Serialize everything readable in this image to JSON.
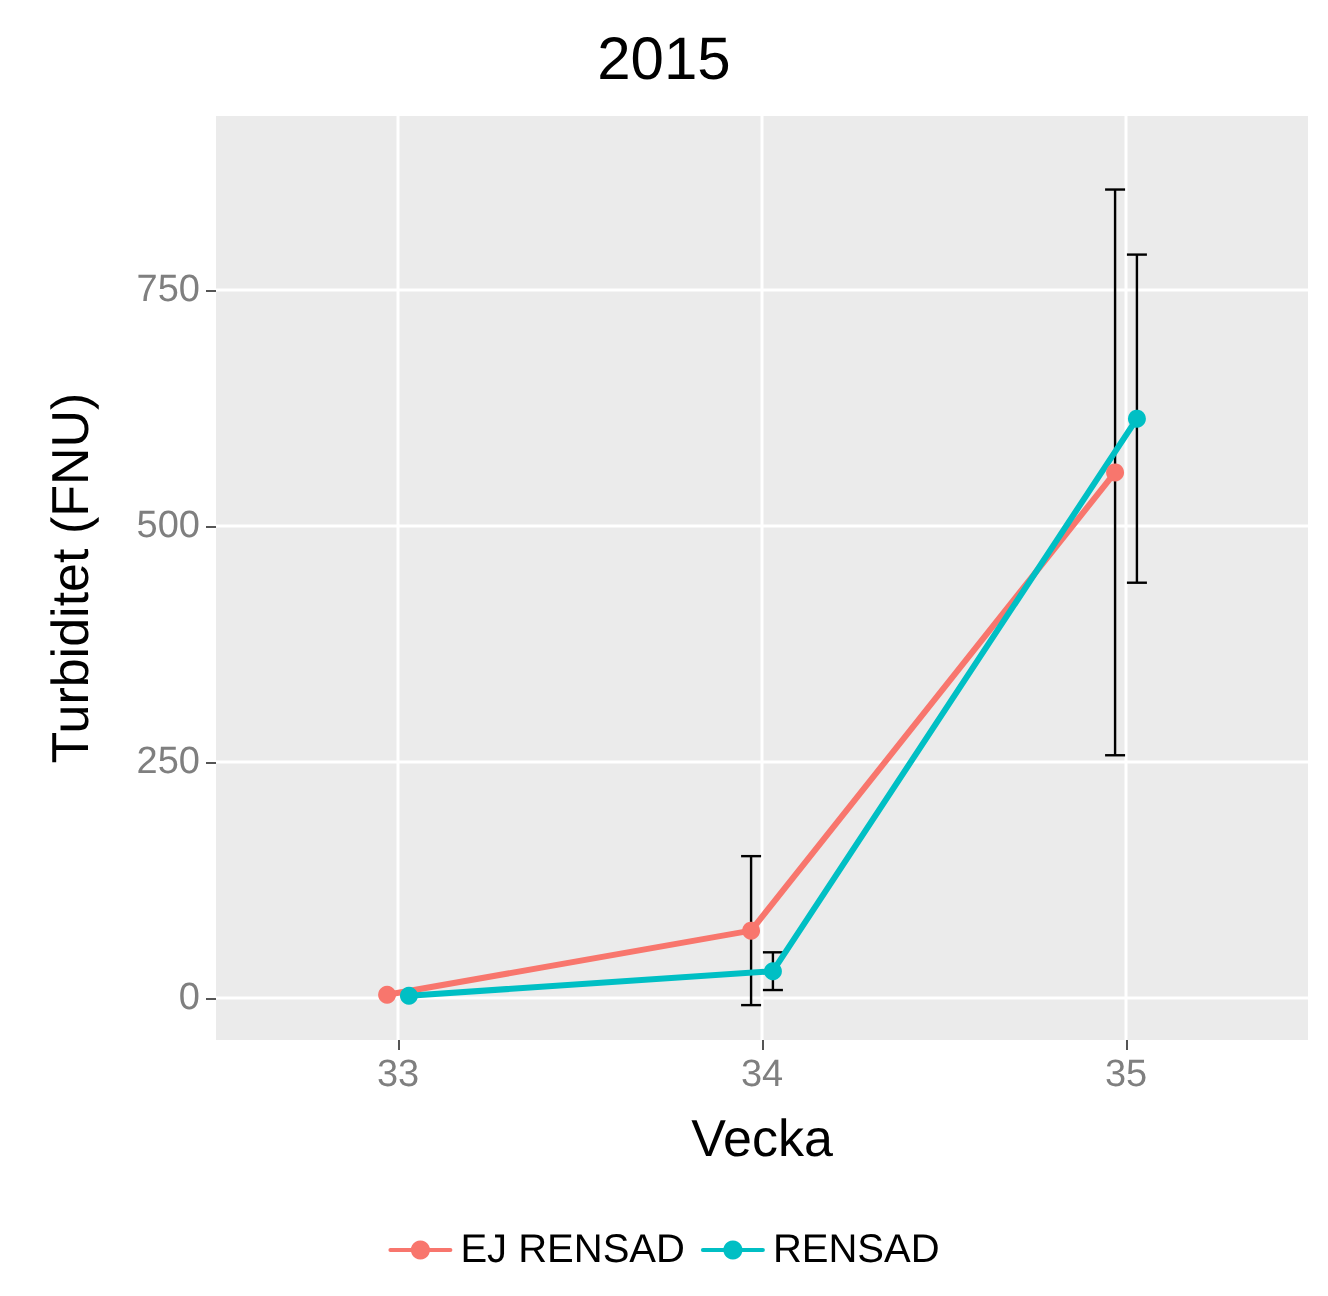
{
  "chart_data": {
    "type": "line",
    "title": "2015",
    "xlabel": "Vecka",
    "ylabel": "Turbiditet (FNU)",
    "series": [
      {
        "name": "EJ RENSAD",
        "color": "#f8766d",
        "x": [
          32.97,
          33.97,
          34.97
        ],
        "values": [
          3,
          71,
          557
        ],
        "errors": [
          null,
          79,
          300
        ]
      },
      {
        "name": "RENSAD",
        "color": "#00bfc4",
        "x": [
          33.03,
          34.03,
          35.03
        ],
        "values": [
          2,
          28,
          614
        ],
        "errors": [
          null,
          20,
          174
        ]
      }
    ],
    "xlim": [
      32.5,
      35.5
    ],
    "xticks": [
      33,
      34,
      35
    ],
    "ylim": [
      -45,
      935
    ],
    "yticks": [
      0,
      250,
      500,
      750
    ],
    "grid": true,
    "legend": "bottom",
    "marker": "circle",
    "line_style": "solid"
  }
}
